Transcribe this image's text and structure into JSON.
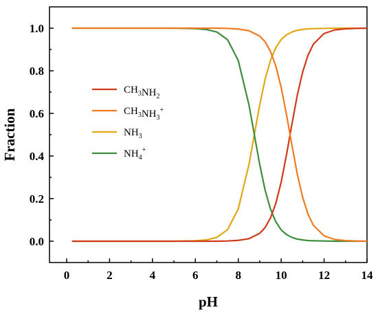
{
  "chart_data": {
    "type": "line",
    "xlabel": "pH",
    "ylabel": "Fraction",
    "xlim": [
      -0.8,
      14
    ],
    "ylim": [
      -0.1,
      1.1
    ],
    "x_ticks": [
      0,
      2,
      4,
      6,
      8,
      10,
      12,
      14
    ],
    "x_tick_labels": [
      "0",
      "2",
      "4",
      "6",
      "8",
      "10",
      "12",
      "14"
    ],
    "y_ticks": [
      0.0,
      0.2,
      0.4,
      0.6,
      0.8,
      1.0
    ],
    "y_tick_labels": [
      "0.0",
      "0.2",
      "0.4",
      "0.6",
      "0.8",
      "1.0"
    ],
    "grid": false,
    "legend_position": "center-left",
    "x": [
      0.25,
      1,
      2,
      3,
      4,
      5,
      6,
      6.5,
      7,
      7.5,
      8,
      8.5,
      9,
      9.25,
      9.5,
      9.75,
      10,
      10.25,
      10.5,
      10.75,
      11,
      11.25,
      11.5,
      12,
      12.5,
      13,
      13.5,
      14
    ],
    "series": [
      {
        "name": "CH3NH2",
        "name_parts": [
          {
            "t": "CH",
            "sub": "3"
          },
          {
            "t": "NH",
            "sub": "2"
          }
        ],
        "color": "#d03a1a",
        "values": [
          0,
          0,
          0,
          0,
          0,
          0,
          0,
          0,
          0,
          0.001,
          0.004,
          0.012,
          0.037,
          0.064,
          0.109,
          0.178,
          0.278,
          0.407,
          0.549,
          0.685,
          0.794,
          0.873,
          0.925,
          0.975,
          0.992,
          0.997,
          0.999,
          1.0
        ]
      },
      {
        "name": "CH3NH3+",
        "name_parts": [
          {
            "t": "CH",
            "sub": "3"
          },
          {
            "t": "NH",
            "sub": "3",
            "sup": "+"
          }
        ],
        "color": "#f07a1e",
        "values": [
          1.0,
          1.0,
          1.0,
          1.0,
          1.0,
          1.0,
          1.0,
          1.0,
          1.0,
          0.999,
          0.996,
          0.988,
          0.963,
          0.936,
          0.891,
          0.822,
          0.722,
          0.593,
          0.451,
          0.315,
          0.206,
          0.127,
          0.075,
          0.025,
          0.008,
          0.003,
          0.001,
          0.0
        ]
      },
      {
        "name": "NH3",
        "name_parts": [
          {
            "t": "NH",
            "sub": "3"
          }
        ],
        "color": "#e0a812",
        "values": [
          0,
          0,
          0,
          0,
          0,
          0,
          0.002,
          0.006,
          0.018,
          0.054,
          0.152,
          0.361,
          0.64,
          0.76,
          0.849,
          0.909,
          0.947,
          0.969,
          0.982,
          0.99,
          0.994,
          0.997,
          0.998,
          0.999,
          1.0,
          1.0,
          1.0,
          1.0
        ]
      },
      {
        "name": "NH4+",
        "name_parts": [
          {
            "t": "NH",
            "sub": "4",
            "sup": "+"
          }
        ],
        "color": "#3c8c3c",
        "values": [
          1.0,
          1.0,
          1.0,
          1.0,
          1.0,
          1.0,
          0.998,
          0.994,
          0.982,
          0.946,
          0.848,
          0.639,
          0.36,
          0.24,
          0.151,
          0.091,
          0.053,
          0.031,
          0.018,
          0.01,
          0.006,
          0.003,
          0.002,
          0.001,
          0.0,
          0.0,
          0.0,
          0.0
        ]
      }
    ]
  }
}
